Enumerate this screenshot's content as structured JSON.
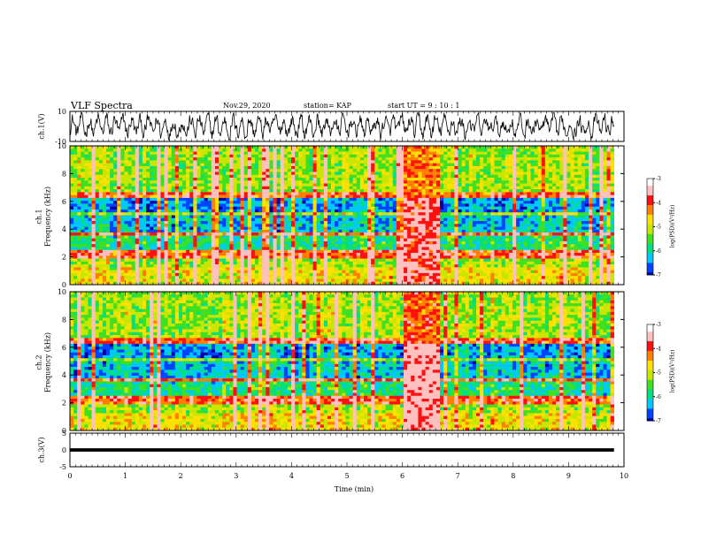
{
  "header": {
    "title": "VLF Spectra",
    "date": "Nov.29, 2020",
    "station": "station= KAP",
    "start": "start  UT =   9 : 10 : 1"
  },
  "chart_data": [
    {
      "type": "line",
      "panel": "ch1-waveform",
      "ylabel": "ch.1(V)",
      "ylim": [
        -10,
        10
      ],
      "yticks": [
        "10",
        "-10"
      ],
      "xlim": [
        0,
        10
      ]
    },
    {
      "type": "heatmap",
      "panel": "ch1-spectrogram",
      "ylabel_top": "ch.1",
      "ylabel": "Frequency (kHz)",
      "ylim": [
        0,
        10
      ],
      "yticks": [
        "10",
        "8",
        "6",
        "4",
        "2",
        "0"
      ],
      "xlim": [
        0,
        10
      ],
      "colorbar": {
        "label": "log(PSD)(V²/Hz)",
        "range": [
          -7,
          -3
        ],
        "ticks": [
          "-3",
          "-4",
          "-5",
          "-6",
          "-7"
        ]
      }
    },
    {
      "type": "heatmap",
      "panel": "ch2-spectrogram",
      "ylabel_top": "ch.2",
      "ylabel": "Frequency (kHz)",
      "ylim": [
        0,
        10
      ],
      "yticks": [
        "10",
        "8",
        "6",
        "4",
        "2",
        "0"
      ],
      "xlim": [
        0,
        10
      ],
      "colorbar": {
        "label": "log(PSD)(V²/Hz)",
        "range": [
          -7,
          -3
        ],
        "ticks": [
          "-3",
          "-4",
          "-5",
          "-6",
          "-7"
        ]
      }
    },
    {
      "type": "line",
      "panel": "ch3-waveform",
      "ylabel": "ch.3(V)",
      "ylim": [
        -5,
        5
      ],
      "yticks": [
        "5",
        "0",
        "-5"
      ],
      "xlim": [
        0,
        10
      ],
      "xticks": [
        "0",
        "1",
        "2",
        "3",
        "4",
        "5",
        "6",
        "7",
        "8",
        "9",
        "10"
      ],
      "xlabel": "Time (min)"
    }
  ],
  "colors": {
    "scale": [
      "#0000a0",
      "#0044ff",
      "#00c8ff",
      "#00e080",
      "#40e020",
      "#c8e600",
      "#ffe000",
      "#ff8000",
      "#ff1010",
      "#ffc0c0",
      "#ffffff"
    ]
  }
}
